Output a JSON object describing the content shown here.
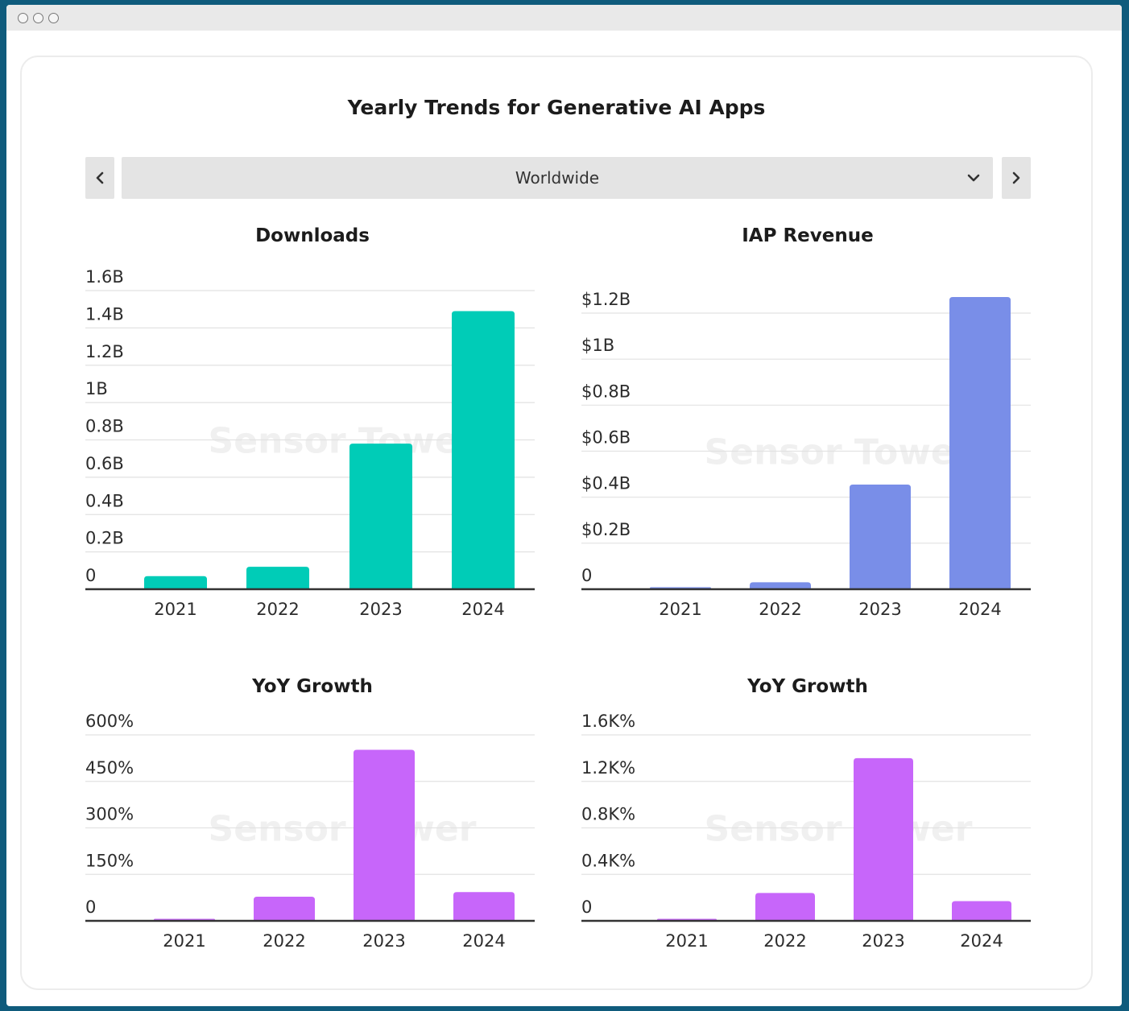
{
  "window": {
    "controls": [
      "close",
      "minimize",
      "maximize"
    ]
  },
  "header": {
    "title": "Yearly Trends for Generative AI Apps",
    "region": "Worldwide",
    "prev_icon": "chevron-left-icon",
    "next_icon": "chevron-right-icon",
    "dropdown_icon": "chevron-down-icon"
  },
  "watermark": "Sensor Tower",
  "colors": {
    "downloads": "#00ccb7",
    "revenue": "#798ee8",
    "growth": "#c766fa",
    "grid": "#e2e2e2",
    "axis": "#333333"
  },
  "chart_data": [
    {
      "id": "downloads",
      "type": "bar",
      "title": "Downloads",
      "categories": [
        "2021",
        "2022",
        "2023",
        "2024"
      ],
      "values": [
        0.07,
        0.12,
        0.78,
        1.49
      ],
      "unit": "B",
      "ylim": [
        0,
        1.6
      ],
      "yticks": [
        0,
        0.2,
        0.4,
        0.6,
        0.8,
        1.0,
        1.2,
        1.4,
        1.6
      ],
      "ytick_labels": [
        "0",
        "0.2B",
        "0.4B",
        "0.6B",
        "0.8B",
        "1B",
        "1.2B",
        "1.4B",
        "1.6B"
      ],
      "color": "#00ccb7",
      "grid": true
    },
    {
      "id": "revenue",
      "type": "bar",
      "title": "IAP Revenue",
      "categories": [
        "2021",
        "2022",
        "2023",
        "2024"
      ],
      "values": [
        0.008,
        0.03,
        0.455,
        1.27
      ],
      "unit": "$B",
      "ylim": [
        0,
        1.2
      ],
      "yticks": [
        0,
        0.2,
        0.4,
        0.6,
        0.8,
        1.0,
        1.2
      ],
      "ytick_labels": [
        "0",
        "$0.2B",
        "$0.4B",
        "$0.6B",
        "$0.8B",
        "$1B",
        "$1.2B"
      ],
      "color": "#798ee8",
      "grid": true
    },
    {
      "id": "downloads-yoy",
      "type": "bar",
      "title": "YoY Growth",
      "categories": [
        "2021",
        "2022",
        "2023",
        "2024"
      ],
      "values": [
        2,
        78,
        552,
        93
      ],
      "unit": "%",
      "ylim": [
        0,
        600
      ],
      "yticks": [
        0,
        150,
        300,
        450,
        600
      ],
      "ytick_labels": [
        "0",
        "150%",
        "300%",
        "450%",
        "600%"
      ],
      "color": "#c766fa",
      "grid": true
    },
    {
      "id": "revenue-yoy",
      "type": "bar",
      "title": "YoY Growth",
      "categories": [
        "2021",
        "2022",
        "2023",
        "2024"
      ],
      "values": [
        0.008,
        0.24,
        1.4,
        0.17
      ],
      "unit": "K%",
      "ylim": [
        0,
        1.6
      ],
      "yticks": [
        0,
        0.4,
        0.8,
        1.2,
        1.6
      ],
      "ytick_labels": [
        "0",
        "0.4K%",
        "0.8K%",
        "1.2K%",
        "1.6K%"
      ],
      "color": "#c766fa",
      "grid": true
    }
  ]
}
